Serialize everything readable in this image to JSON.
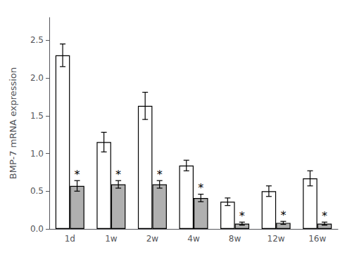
{
  "chart_data": {
    "type": "bar",
    "ylabel": "BMP-7 mRNA expression",
    "categories": [
      "1d",
      "1w",
      "2w",
      "4w",
      "8w",
      "12w",
      "16w"
    ],
    "series": [
      {
        "color": "#ffffff",
        "values": [
          2.3,
          1.15,
          1.63,
          0.84,
          0.36,
          0.5,
          0.67
        ],
        "errors": [
          0.15,
          0.13,
          0.18,
          0.07,
          0.05,
          0.07,
          0.1
        ]
      },
      {
        "color": "#b0b0b0",
        "values": [
          0.57,
          0.59,
          0.59,
          0.41,
          0.07,
          0.08,
          0.07
        ],
        "errors": [
          0.07,
          0.05,
          0.05,
          0.05,
          0.02,
          0.02,
          0.02
        ],
        "annotations": [
          "*",
          "*",
          "*",
          "*",
          "*",
          "*",
          "*"
        ]
      }
    ],
    "ylim": [
      0.0,
      2.8
    ],
    "yticks": [
      {
        "value": 0.0,
        "label": "0.0"
      },
      0.5,
      {
        "value": 1.0,
        "label": "1.0"
      },
      1.5,
      {
        "value": 2.0,
        "label": "2.0"
      },
      2.5
    ],
    "grid": false
  }
}
